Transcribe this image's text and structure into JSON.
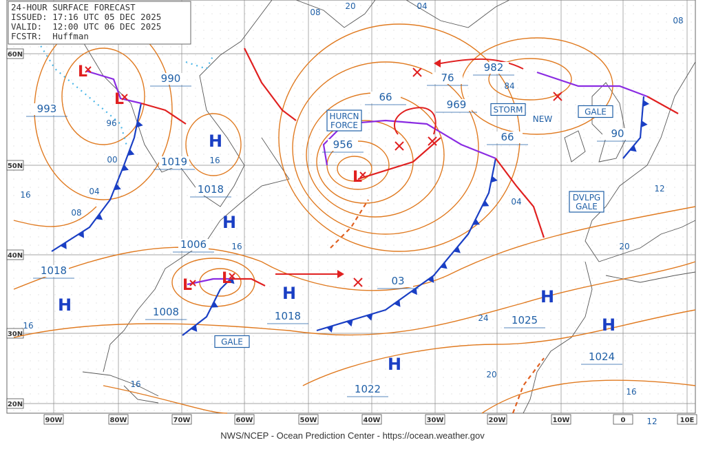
{
  "header": {
    "lines": [
      "24-HOUR SURFACE FORECAST",
      "ISSUED: 17:16 UTC 05 DEC 2025",
      "VALID:  12:00 UTC 06 DEC 2025",
      "FCSTR:  Huffman"
    ]
  },
  "footer": "NWS/NCEP - Ocean Prediction Center - https://ocean.weather.gov",
  "lat_labels": [
    "60N",
    "50N",
    "40N",
    "30N",
    "20N"
  ],
  "lon_labels": [
    "90W",
    "80W",
    "70W",
    "60W",
    "50W",
    "40W",
    "30W",
    "20W",
    "10W",
    "0",
    "10E"
  ],
  "pressure_labels": [
    "993",
    "990",
    "1019",
    "1018",
    "1006",
    "1018",
    "1008",
    "1018",
    "956",
    "66",
    "76",
    "982",
    "969",
    "66",
    "90",
    "03",
    "1025",
    "1024",
    "1022"
  ],
  "isobar_labels": [
    "08",
    "20",
    "04",
    "08",
    "84",
    "96",
    "00",
    "04",
    "08",
    "16",
    "16",
    "16",
    "04",
    "12",
    "20",
    "24",
    "20",
    "16",
    "12",
    "16",
    "16"
  ],
  "highs": [
    "H",
    "H",
    "H",
    "H",
    "H",
    "H",
    "H"
  ],
  "lows": [
    "L",
    "L",
    "L",
    "L",
    "L"
  ],
  "warnings": [
    [
      "HURCN",
      "FORCE"
    ],
    [
      "STORM"
    ],
    [
      "GALE"
    ],
    [
      "DVLPG",
      "GALE"
    ],
    [
      "GALE"
    ]
  ],
  "new_label": "NEW"
}
